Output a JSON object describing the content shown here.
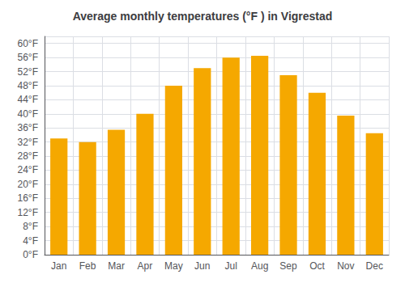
{
  "chart_data": {
    "type": "bar",
    "title": "Average monthly temperatures (°F ) in Vigrestad",
    "categories": [
      "Jan",
      "Feb",
      "Mar",
      "Apr",
      "May",
      "Jun",
      "Jul",
      "Aug",
      "Sep",
      "Oct",
      "Nov",
      "Dec"
    ],
    "values": [
      33,
      32,
      35.5,
      40,
      48,
      53,
      56,
      56.5,
      51,
      46,
      39.5,
      34.5
    ],
    "color": "#F5A800",
    "ylim": [
      0,
      62
    ],
    "yticks": [
      {
        "value": 0,
        "label": "0°F"
      },
      {
        "value": 4,
        "label": "4°F"
      },
      {
        "value": 8,
        "label": "8°F"
      },
      {
        "value": 12,
        "label": "12°F"
      },
      {
        "value": 16,
        "label": "16°F"
      },
      {
        "value": 20,
        "label": "20°F"
      },
      {
        "value": 24,
        "label": "24°F"
      },
      {
        "value": 28,
        "label": "28°F"
      },
      {
        "value": 32,
        "label": "32°F"
      },
      {
        "value": 36,
        "label": "36°F"
      },
      {
        "value": 40,
        "label": "40°F"
      },
      {
        "value": 44,
        "label": "44°F"
      },
      {
        "value": 48,
        "label": "48°F"
      },
      {
        "value": 52,
        "label": "52°F"
      },
      {
        "value": 56,
        "label": "56°F"
      },
      {
        "value": 60,
        "label": "60°F"
      }
    ],
    "grid": true
  }
}
